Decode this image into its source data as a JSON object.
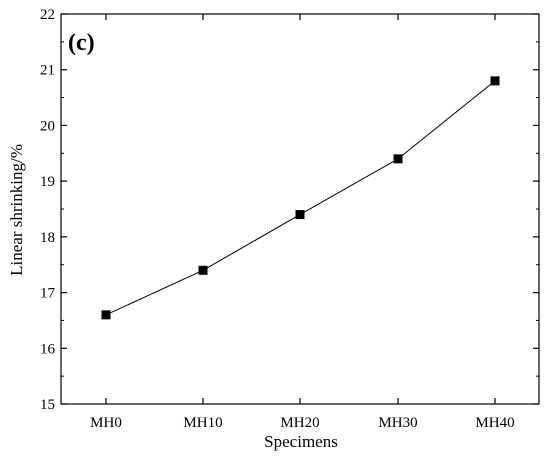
{
  "chart_data": {
    "type": "line",
    "panel_label": "(c)",
    "title": "",
    "xlabel": "Specimens",
    "ylabel": "Linear shrinking/%",
    "categories": [
      "MH0",
      "MH10",
      "MH20",
      "MH30",
      "MH40"
    ],
    "series": [
      {
        "values": [
          16.6,
          17.4,
          18.4,
          19.4,
          20.8
        ],
        "marker": "square",
        "color": "#000000"
      }
    ],
    "ylim": [
      15,
      22
    ],
    "yticks": [
      "15",
      "16",
      "17",
      "18",
      "19",
      "20",
      "21",
      "22"
    ],
    "grid": false,
    "legend": "none"
  }
}
